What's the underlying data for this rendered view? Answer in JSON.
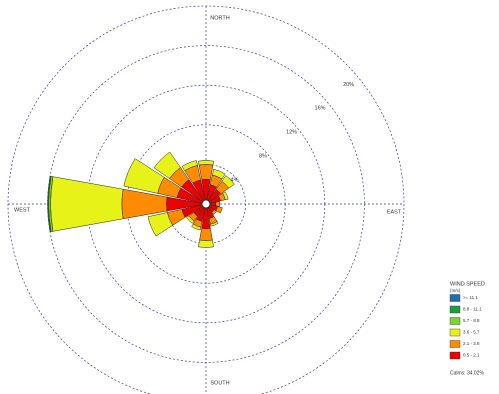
{
  "chart_data": {
    "type": "windrose",
    "categories": [
      "NORTH",
      null,
      null,
      null,
      "EAST",
      null,
      null,
      null,
      "SOUTH",
      null,
      null,
      null,
      "WEST",
      null,
      null,
      null
    ],
    "series": [
      {
        "name": ">= 11.1",
        "color": "#1f6fb5",
        "values": [
          0,
          0,
          0,
          0,
          0,
          0,
          0,
          0,
          0,
          0,
          0,
          0,
          0,
          0,
          0,
          0
        ]
      },
      {
        "name": "8.8 - 11.1",
        "color": "#1aa040",
        "values": [
          0,
          0,
          0,
          0,
          0,
          0,
          0,
          0,
          0,
          0,
          0,
          0,
          0.1,
          0,
          0,
          0
        ]
      },
      {
        "name": "5.7 - 8.8",
        "color": "#7ad62a",
        "values": [
          0,
          0,
          0,
          0,
          0,
          0,
          0,
          0,
          0,
          0,
          0,
          0,
          0.2,
          0,
          0,
          0
        ]
      },
      {
        "name": "3.6 - 5.7",
        "color": "#e6f218",
        "values": [
          0.4,
          0.6,
          0.7,
          0.3,
          0,
          0,
          0,
          0.2,
          0.7,
          0.3,
          0.3,
          2.0,
          7.2,
          3.5,
          1.9,
          0.5
        ]
      },
      {
        "name": "2.1 - 3.6",
        "color": "#ff8c00",
        "values": [
          1.5,
          1.0,
          1.0,
          0.5,
          0.4,
          0.5,
          0.3,
          0.6,
          1.2,
          0.6,
          0.6,
          1.5,
          4.5,
          2.0,
          1.5,
          1.5
        ]
      },
      {
        "name": "0.5 - 2.1",
        "color": "#ee0000",
        "values": [
          2.5,
          2.0,
          1.8,
          1.5,
          1.0,
          1.2,
          1.0,
          1.5,
          2.5,
          1.8,
          1.5,
          2.5,
          4.0,
          3.0,
          3.0,
          2.5
        ]
      }
    ],
    "rlim": [
      0,
      20
    ],
    "rticks": [
      {
        "value": 4,
        "label": "4%"
      },
      {
        "value": 8,
        "label": "8%"
      },
      {
        "value": 12,
        "label": "12%"
      },
      {
        "value": 16,
        "label": "16%"
      },
      {
        "value": 20,
        "label": "20%"
      }
    ],
    "legend_title": "WIND SPEED",
    "legend_unit": "(m/s)",
    "calms": {
      "value": 34.02,
      "label": "Calms: 34.02%"
    }
  }
}
